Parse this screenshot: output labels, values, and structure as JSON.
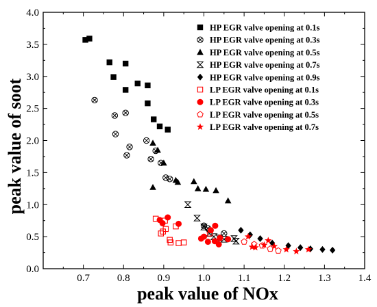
{
  "chart_data": {
    "type": "scatter",
    "xlabel": "peak value of NOx",
    "ylabel": "peak value of soot",
    "xlim": [
      0.6,
      1.4
    ],
    "ylim": [
      0.0,
      4.0
    ],
    "xticks": [
      "0.7",
      "0.8",
      "0.9",
      "1.0",
      "1.1",
      "1.2",
      "1.3",
      "1.4"
    ],
    "yticks": [
      "0.0",
      "0.5",
      "1.0",
      "1.5",
      "2.0",
      "2.5",
      "3.0",
      "3.5",
      "4.0"
    ],
    "grid": false,
    "legend_position": "top-right",
    "series": [
      {
        "name": "HP EGR valve opening at 0.1s",
        "marker": "square-filled",
        "color": "#000000",
        "points": [
          [
            0.705,
            3.57
          ],
          [
            0.715,
            3.59
          ],
          [
            0.765,
            3.22
          ],
          [
            0.775,
            2.99
          ],
          [
            0.805,
            3.2
          ],
          [
            0.805,
            2.79
          ],
          [
            0.835,
            2.89
          ],
          [
            0.86,
            2.86
          ],
          [
            0.86,
            2.58
          ],
          [
            0.875,
            2.33
          ],
          [
            0.89,
            2.22
          ],
          [
            0.91,
            2.17
          ]
        ]
      },
      {
        "name": "HP EGR valve opening at 0.3s",
        "marker": "circle-x",
        "color": "#000000",
        "points": [
          [
            0.728,
            2.63
          ],
          [
            0.778,
            2.39
          ],
          [
            0.78,
            2.1
          ],
          [
            0.805,
            2.43
          ],
          [
            0.808,
            1.77
          ],
          [
            0.815,
            1.9
          ],
          [
            0.857,
            2.0
          ],
          [
            0.868,
            1.71
          ],
          [
            0.88,
            1.84
          ],
          [
            0.893,
            1.65
          ],
          [
            0.905,
            1.42
          ],
          [
            0.915,
            1.4
          ],
          [
            1.0,
            0.67
          ],
          [
            1.01,
            0.63
          ],
          [
            1.05,
            0.55
          ]
        ]
      },
      {
        "name": "HP EGR valve opening at 0.5s",
        "marker": "triangle-filled",
        "color": "#000000",
        "points": [
          [
            0.873,
            1.27
          ],
          [
            0.873,
            1.96
          ],
          [
            0.885,
            1.85
          ],
          [
            0.9,
            1.65
          ],
          [
            0.93,
            1.38
          ],
          [
            0.935,
            1.35
          ],
          [
            0.975,
            1.36
          ],
          [
            0.985,
            1.25
          ],
          [
            1.005,
            1.24
          ],
          [
            1.03,
            1.22
          ],
          [
            1.06,
            1.06
          ]
        ]
      },
      {
        "name": "HP EGR valve opening at 0.7s",
        "marker": "bowtie",
        "color": "#000000",
        "points": [
          [
            0.96,
            1.0
          ],
          [
            0.983,
            0.79
          ],
          [
            1.0,
            0.65
          ],
          [
            1.013,
            0.55
          ],
          [
            1.025,
            0.5
          ],
          [
            1.038,
            0.48
          ],
          [
            1.05,
            0.46
          ],
          [
            1.075,
            0.47
          ],
          [
            1.08,
            0.43
          ]
        ]
      },
      {
        "name": "HP EGR valve opening at 0.9s",
        "marker": "diamond-filled",
        "color": "#000000",
        "points": [
          [
            1.092,
            0.6
          ],
          [
            1.115,
            0.53
          ],
          [
            1.14,
            0.47
          ],
          [
            1.17,
            0.4
          ],
          [
            1.21,
            0.36
          ],
          [
            1.24,
            0.33
          ],
          [
            1.265,
            0.31
          ],
          [
            1.295,
            0.3
          ],
          [
            1.32,
            0.29
          ]
        ]
      },
      {
        "name": "LP EGR valve opening at 0.1s",
        "marker": "square-open",
        "color": "#ff0000",
        "points": [
          [
            0.88,
            0.78
          ],
          [
            0.893,
            0.55
          ],
          [
            0.898,
            0.58
          ],
          [
            0.903,
            0.75
          ],
          [
            0.905,
            0.62
          ],
          [
            0.915,
            0.45
          ],
          [
            0.917,
            0.41
          ],
          [
            0.93,
            0.66
          ],
          [
            0.937,
            0.4
          ],
          [
            0.95,
            0.41
          ]
        ]
      },
      {
        "name": "LP EGR valve opening at 0.3s",
        "marker": "circle-filled",
        "color": "#ff0000",
        "points": [
          [
            0.89,
            0.76
          ],
          [
            0.897,
            0.71
          ],
          [
            0.91,
            0.8
          ],
          [
            0.937,
            0.7
          ],
          [
            0.993,
            0.47
          ],
          [
            1.0,
            0.5
          ],
          [
            1.01,
            0.42
          ],
          [
            1.017,
            0.6
          ],
          [
            1.027,
            0.43
          ],
          [
            1.028,
            0.67
          ],
          [
            1.037,
            0.38
          ],
          [
            1.04,
            0.48
          ],
          [
            1.06,
            0.46
          ]
        ]
      },
      {
        "name": "LP EGR valve opening at 0.5s",
        "marker": "pentagon-open",
        "color": "#ff0000",
        "points": [
          [
            1.015,
            0.55
          ],
          [
            1.04,
            0.48
          ],
          [
            1.1,
            0.42
          ],
          [
            1.125,
            0.38
          ],
          [
            1.145,
            0.36
          ],
          [
            1.165,
            0.31
          ],
          [
            1.185,
            0.28
          ]
        ]
      },
      {
        "name": "LP EGR valve opening at 0.7s",
        "marker": "star-filled",
        "color": "#ff0000",
        "points": [
          [
            1.11,
            0.5
          ],
          [
            1.12,
            0.34
          ],
          [
            1.128,
            0.33
          ],
          [
            1.15,
            0.37
          ],
          [
            1.16,
            0.44
          ],
          [
            1.175,
            0.35
          ],
          [
            1.205,
            0.3
          ],
          [
            1.23,
            0.27
          ],
          [
            1.26,
            0.3
          ]
        ]
      }
    ]
  }
}
